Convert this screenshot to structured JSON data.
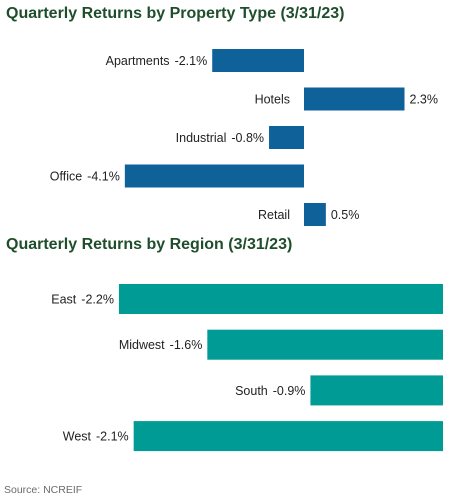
{
  "source": "Source: NCREIF",
  "chart_data": [
    {
      "type": "bar",
      "orientation": "horizontal",
      "title": "Quarterly Returns by Property Type (3/31/23)",
      "categories": [
        "Apartments",
        "Hotels",
        "Industrial",
        "Office",
        "Retail"
      ],
      "values": [
        -2.1,
        2.3,
        -0.8,
        -4.1,
        0.5
      ],
      "value_labels": [
        "-2.1%",
        "2.3%",
        "-0.8%",
        "-4.1%",
        "0.5%"
      ],
      "color": "#0e6199",
      "grid": false,
      "legend": "none"
    },
    {
      "type": "bar",
      "orientation": "horizontal",
      "title": "Quarterly Returns by Region (3/31/23)",
      "categories": [
        "East",
        "Midwest",
        "South",
        "West"
      ],
      "values": [
        -2.2,
        -1.6,
        -0.9,
        -2.1
      ],
      "value_labels": [
        "-2.2%",
        "-1.6%",
        "-0.9%",
        "-2.1%"
      ],
      "color": "#009b95",
      "grid": false,
      "legend": "none"
    }
  ]
}
